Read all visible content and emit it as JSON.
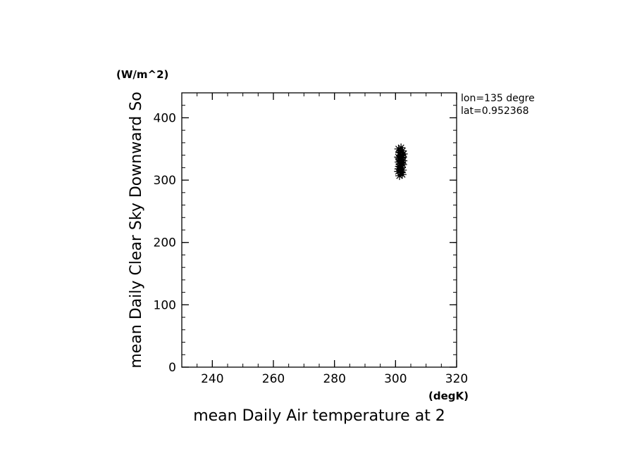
{
  "chart_data": {
    "type": "scatter",
    "xlabel": "mean Daily Air temperature at 2",
    "ylabel": "mean Daily Clear Sky Downward So",
    "x_unit": "(degK)",
    "y_unit": "(W/m^2)",
    "xlim": [
      230,
      320
    ],
    "ylim": [
      0,
      440
    ],
    "x_ticks": [
      240,
      260,
      280,
      300,
      320
    ],
    "y_ticks": [
      0,
      100,
      200,
      300,
      400
    ],
    "x_minor_step": 5,
    "y_minor_step": 20,
    "grid": false,
    "marker": "star",
    "color": "#000000",
    "annotations": [
      "lon=135 degre",
      "lat=0.952368"
    ],
    "series": [
      {
        "points": [
          [
            301.0,
            350
          ],
          [
            301.8,
            352
          ],
          [
            302.3,
            347
          ],
          [
            301.3,
            344
          ],
          [
            302.6,
            342
          ],
          [
            301.6,
            339
          ],
          [
            300.9,
            337
          ],
          [
            302.1,
            336
          ],
          [
            301.4,
            333
          ],
          [
            302.5,
            331
          ],
          [
            301.1,
            329
          ],
          [
            301.9,
            327
          ],
          [
            302.4,
            325
          ],
          [
            301.2,
            322
          ],
          [
            302.0,
            320
          ],
          [
            301.5,
            318
          ],
          [
            302.3,
            316
          ],
          [
            300.9,
            314
          ],
          [
            301.7,
            312
          ],
          [
            302.2,
            309
          ],
          [
            301.3,
            307
          ],
          [
            301.8,
            324
          ],
          [
            302.1,
            340
          ],
          [
            301.0,
            318
          ],
          [
            301.6,
            345
          ],
          [
            302.0,
            329
          ],
          [
            301.2,
            335
          ],
          [
            301.9,
            313
          ],
          [
            302.4,
            337
          ],
          [
            301.4,
            326
          ]
        ]
      }
    ]
  }
}
